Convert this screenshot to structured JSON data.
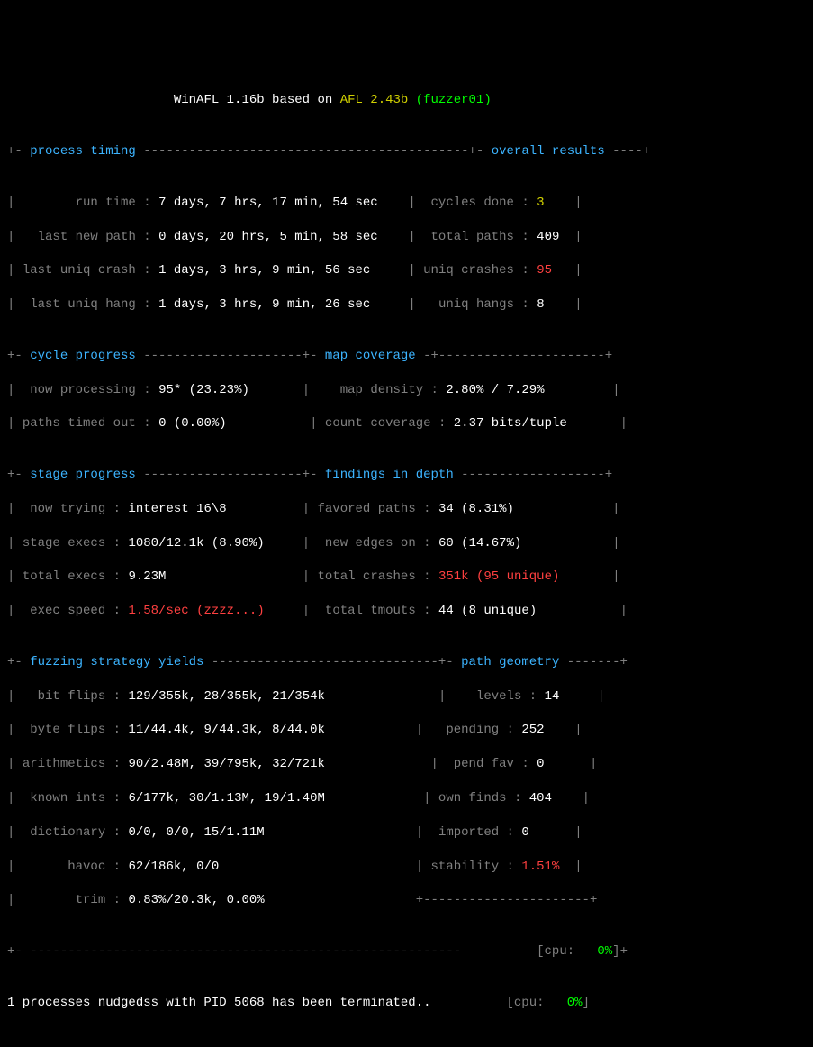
{
  "title": {
    "pre": "WinAFL 1.16b based on ",
    "afl": "AFL 2.43b ",
    "fuzz": "(fuzzer01)"
  },
  "section_labels": {
    "process_timing": "process timing",
    "overall_results": "overall results",
    "cycle_progress": "cycle progress",
    "map_coverage": "map coverage",
    "stage_progress": "stage progress",
    "findings_in_depth": "findings in depth",
    "fuzzing_strategy_yields": "fuzzing strategy yields",
    "path_geometry": "path geometry"
  },
  "process_timing": {
    "run_time": {
      "label": "run time",
      "value": "7 days, 7 hrs, 17 min, 54 sec"
    },
    "last_new_path": {
      "label": "last new path",
      "value": "0 days, 20 hrs, 5 min, 58 sec"
    },
    "last_uniq_crash": {
      "label": "last uniq crash",
      "value": "1 days, 3 hrs, 9 min, 56 sec"
    },
    "last_uniq_hang": {
      "label": "last uniq hang",
      "value": "1 days, 3 hrs, 9 min, 26 sec"
    }
  },
  "overall_results": {
    "cycles_done": {
      "label": "cycles done",
      "value": "3"
    },
    "total_paths": {
      "label": "total paths",
      "value": "409"
    },
    "uniq_crashes": {
      "label": "uniq crashes",
      "value": "95"
    },
    "uniq_hangs": {
      "label": "uniq hangs",
      "value": "8"
    }
  },
  "cycle_progress": {
    "now_processing": {
      "label": "now processing",
      "value": "95* (23.23%)"
    },
    "paths_timed_out": {
      "label": "paths timed out",
      "value": "0 (0.00%)"
    }
  },
  "map_coverage": {
    "map_density": {
      "label": "map density",
      "value": "2.80% / 7.29%"
    },
    "count_coverage": {
      "label": "count coverage",
      "value": "2.37 bits/tuple"
    }
  },
  "stage_progress": {
    "now_trying": {
      "label": "now trying",
      "value": "interest 16\\8"
    },
    "stage_execs": {
      "label": "stage execs",
      "value": "1080/12.1k (8.90%)"
    },
    "total_execs": {
      "label": "total execs",
      "value": "9.23M"
    },
    "exec_speed": {
      "label": "exec speed",
      "value": "1.58/sec (zzzz...)"
    }
  },
  "findings_in_depth": {
    "favored_paths": {
      "label": "favored paths",
      "value": "34 (8.31%)"
    },
    "new_edges_on": {
      "label": "new edges on",
      "value": "60 (14.67%)"
    },
    "total_crashes": {
      "label": "total crashes",
      "value": "351k (95 unique)"
    },
    "total_tmouts": {
      "label": "total tmouts",
      "value": "44 (8 unique)"
    }
  },
  "fuzzing_strategy_yields": {
    "bit_flips": {
      "label": "bit flips",
      "value": "129/355k, 28/355k, 21/354k"
    },
    "byte_flips": {
      "label": "byte flips",
      "value": "11/44.4k, 9/44.3k, 8/44.0k"
    },
    "arithmetics": {
      "label": "arithmetics",
      "value": "90/2.48M, 39/795k, 32/721k"
    },
    "known_ints": {
      "label": "known ints",
      "value": "6/177k, 30/1.13M, 19/1.40M"
    },
    "dictionary": {
      "label": "dictionary",
      "value": "0/0, 0/0, 15/1.11M"
    },
    "havoc": {
      "label": "havoc",
      "value": "62/186k, 0/0"
    },
    "trim": {
      "label": "trim",
      "value": "0.83%/20.3k, 0.00%"
    }
  },
  "path_geometry": {
    "levels": {
      "label": "levels",
      "value": "14"
    },
    "pending": {
      "label": "pending",
      "value": "252"
    },
    "pend_fav": {
      "label": "pend fav",
      "value": "0"
    },
    "own_finds": {
      "label": "own finds",
      "value": "404"
    },
    "imported": {
      "label": "imported",
      "value": "0"
    },
    "stability": {
      "label": "stability",
      "value": "1.51%"
    }
  },
  "cpu": {
    "label": "[cpu:",
    "value": "0%",
    "close": "]+"
  },
  "cpu2": {
    "label": "[cpu:",
    "value": "0%",
    "close": "]"
  },
  "footer": "1 processes nudgedss with PID 5068 has been terminated.."
}
